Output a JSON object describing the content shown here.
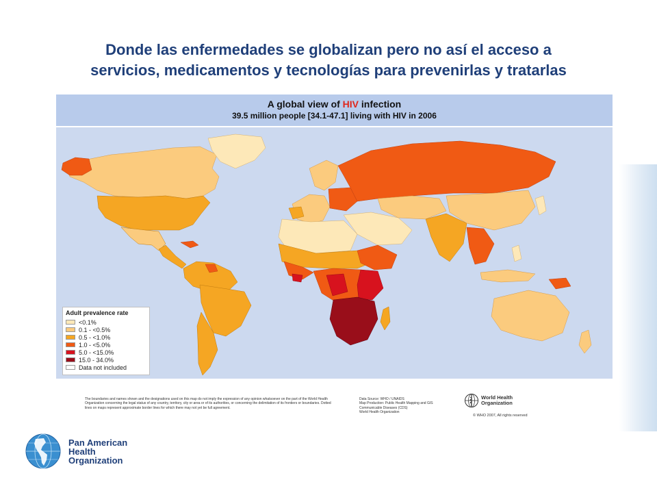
{
  "slide": {
    "title_line1": "Donde las enfermedades se globalizan pero no así el acceso a",
    "title_line2": "servicios, medicamentos y tecnologías para prevenirlas y tratarlas"
  },
  "map": {
    "title_prefix": "A global view of ",
    "title_highlight": "HIV",
    "title_suffix": " infection",
    "subtitle": "39.5 million people [34.1-47.1] living with HIV in 2006",
    "ocean_color": "#ccd9ef",
    "legend": {
      "title": "Adult prevalence rate",
      "items": [
        {
          "label": "<0.1%",
          "color": "#fde8b8"
        },
        {
          "label": "0.1 - <0.5%",
          "color": "#fbcb7e"
        },
        {
          "label": "0.5 - <1.0%",
          "color": "#f5a623"
        },
        {
          "label": "1.0 - <5.0%",
          "color": "#f05a14"
        },
        {
          "label": "5.0 - <15.0%",
          "color": "#d7121e"
        },
        {
          "label": "15.0 - 34.0%",
          "color": "#990e1a"
        },
        {
          "label": "Data not included",
          "color": "#ffffff"
        }
      ]
    }
  },
  "footer": {
    "disclaimer": "The boundaries and names shown and the designations used on this map do not imply the expression of any opinion whatsoever on the part of the World Health Organization concerning the legal status of any country, territory, city or area or of its authorities, or concerning the delimitation of its frontiers or boundaries. Dotted lines on maps represent approximate border lines for which there may not yet be full agreement.",
    "source_line1": "Data Source: WHO / UNAIDS",
    "source_line2": "Map Production: Public Health Mapping and GIS",
    "source_line3": "Communicable Diseases (CDS)",
    "source_line4": "World Health Organization",
    "who_name_line1": "World Health",
    "who_name_line2": "Organization",
    "copyright": "© WHO 2007, All rights reserved"
  },
  "org": {
    "line1": "Pan American",
    "line2": "Health",
    "line3": "Organization"
  }
}
